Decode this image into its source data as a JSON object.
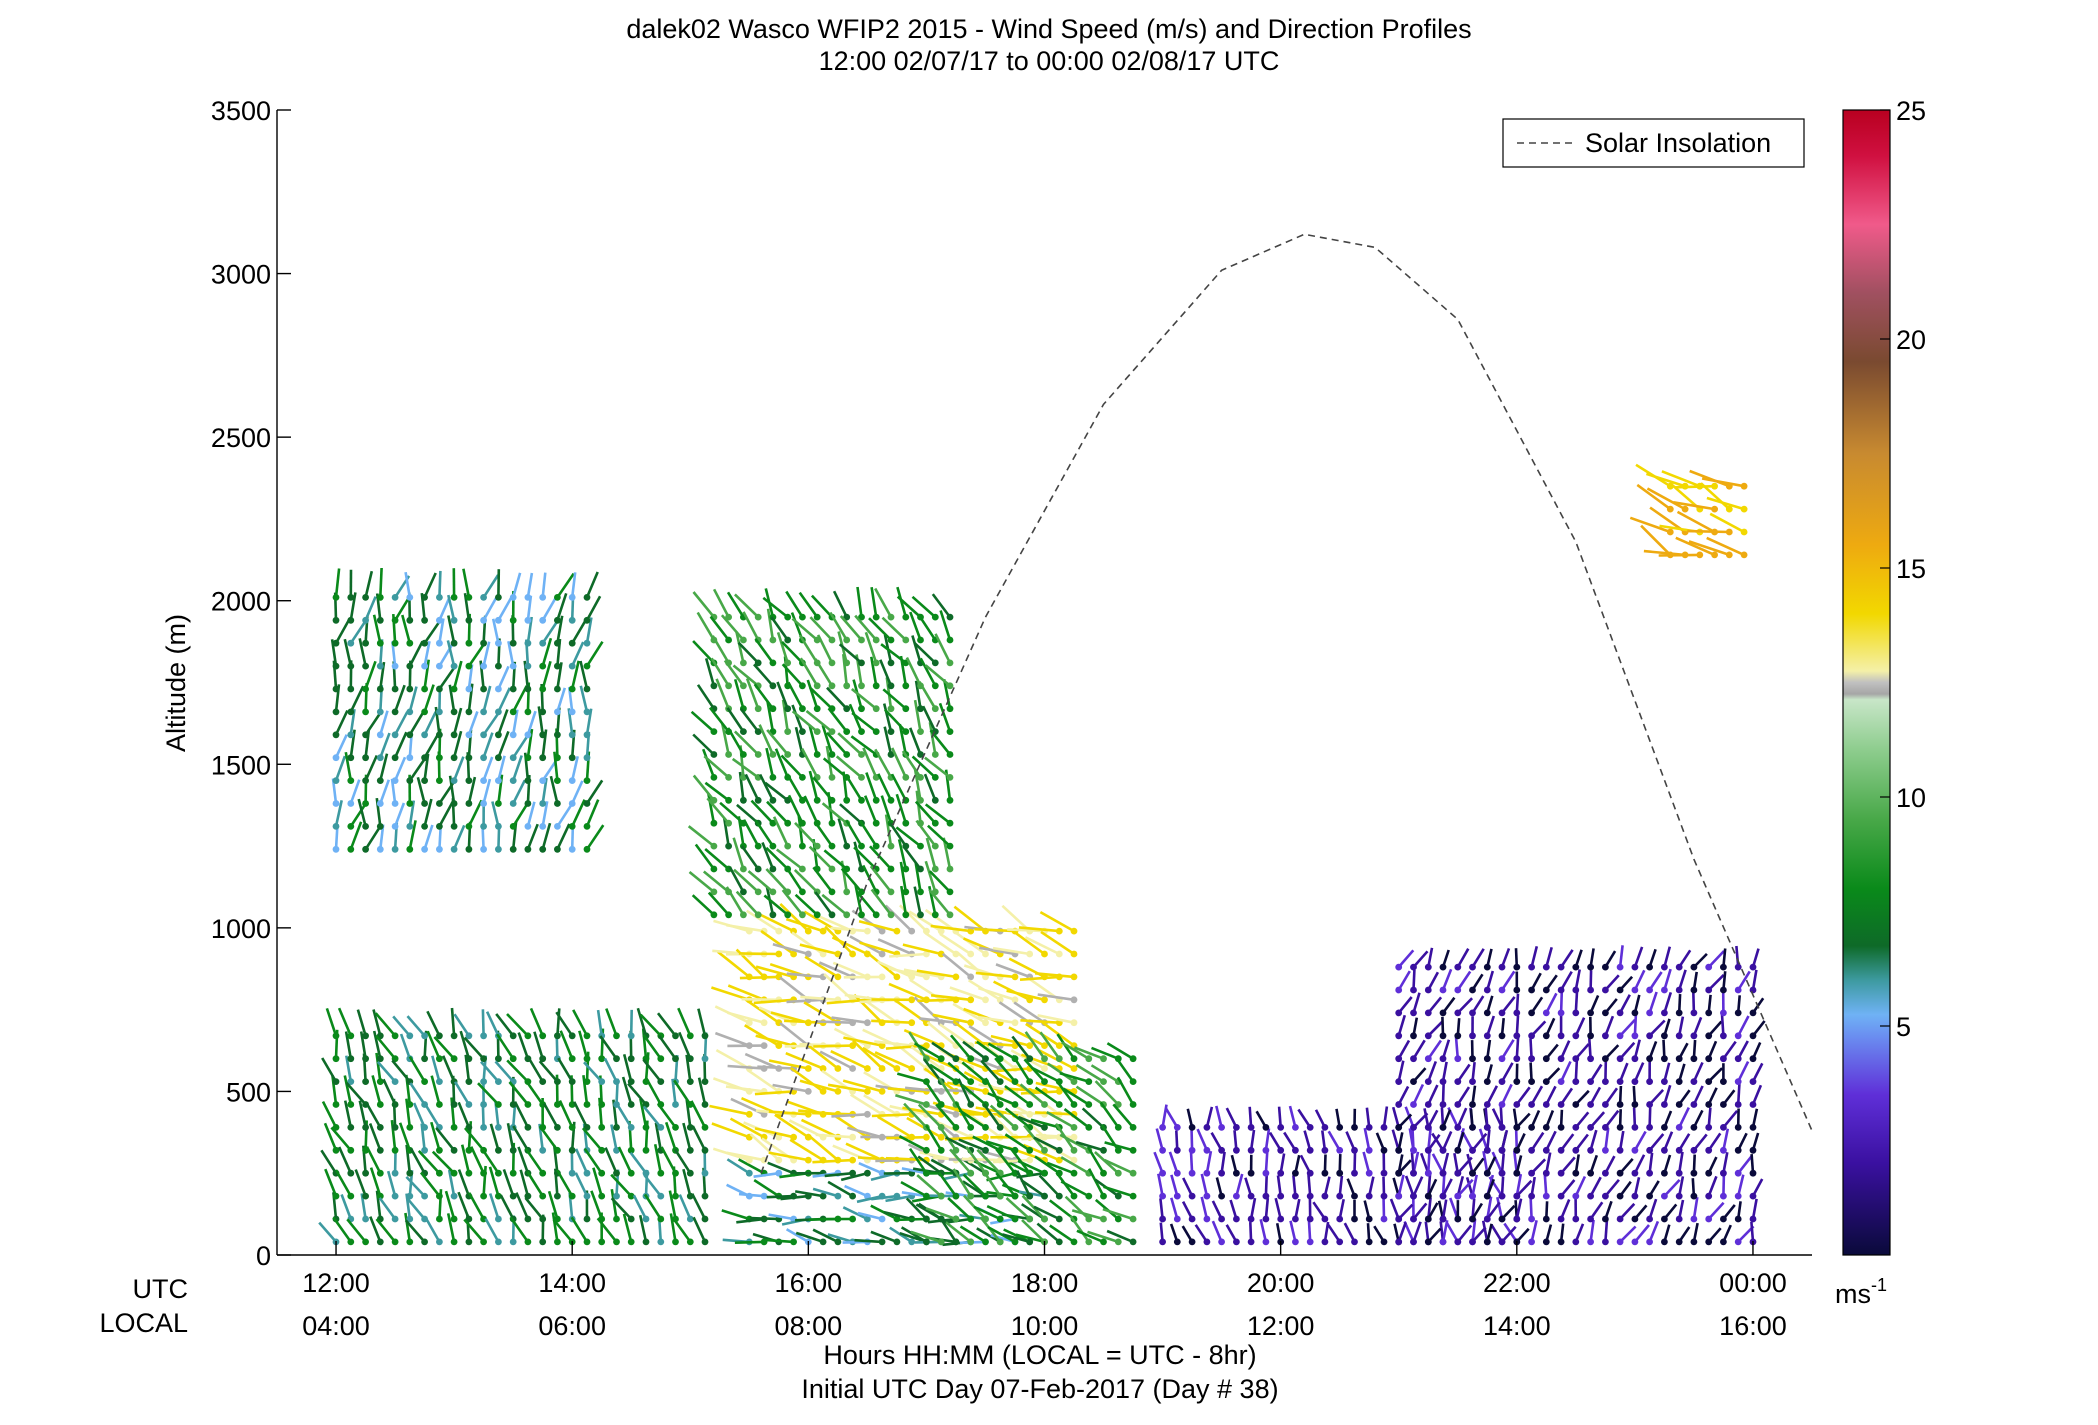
{
  "chart_data": {
    "type": "scatter",
    "title": "dalek02 Wasco WFIP2 2015 - Wind Speed (m/s) and Direction Profiles",
    "subtitle": "12:00 02/07/17 to 00:00 02/08/17  UTC",
    "ylabel": "Altitude (m)",
    "xlabel": "Hours HH:MM  (LOCAL = UTC - 8hr)",
    "xlabel2": "Initial UTC Day 07-Feb-2017 (Day # 38)",
    "row_label_utc": "UTC",
    "row_label_local": "LOCAL",
    "x_ticks_utc": [
      "12:00",
      "14:00",
      "16:00",
      "18:00",
      "20:00",
      "22:00",
      "00:00"
    ],
    "x_ticks_local": [
      "04:00",
      "06:00",
      "08:00",
      "10:00",
      "12:00",
      "14:00",
      "16:00"
    ],
    "xlim": [
      11.5,
      24.5
    ],
    "y_ticks": [
      0,
      500,
      1000,
      1500,
      2000,
      2500,
      3000,
      3500
    ],
    "ylim": [
      0,
      3500
    ],
    "colorbar": {
      "ticks": [
        5,
        10,
        15,
        20,
        25
      ],
      "range": [
        0,
        25
      ],
      "unit_label": "ms",
      "unit_exponent": "-1"
    },
    "legend": {
      "entry": "Solar Insolation",
      "placement": "top-right",
      "style": "dashed"
    },
    "solar_insolation": {
      "x_hours": [
        15.6,
        16.5,
        17.5,
        18.5,
        19.5,
        20.2,
        20.8,
        21.5,
        22.5,
        23.5,
        24.5
      ],
      "altitude_m": [
        250,
        1140,
        1950,
        2600,
        3010,
        3120,
        3080,
        2860,
        2180,
        1210,
        380
      ]
    },
    "wind_barbs": {
      "note": "profiles of wind speed (color) and direction (stick) vs time and altitude",
      "regions": [
        {
          "t0": 12.0,
          "t1": 15.2,
          "z0": 0,
          "z1": 700,
          "speed": 7.5,
          "dir": 200
        },
        {
          "t0": 12.0,
          "t1": 14.2,
          "z0": 1200,
          "z1": 2050,
          "speed": 7,
          "dir": 170
        },
        {
          "t0": 15.5,
          "t1": 18.0,
          "z0": 0,
          "z1": 250,
          "speed": 7,
          "dir": 260
        },
        {
          "t0": 15.5,
          "t1": 18.3,
          "z0": 250,
          "z1": 1000,
          "speed": 14,
          "dir": 250
        },
        {
          "t0": 15.2,
          "t1": 17.2,
          "z0": 1000,
          "z1": 2000,
          "speed": 9,
          "dir": 210
        },
        {
          "t0": 17.0,
          "t1": 18.8,
          "z0": 0,
          "z1": 600,
          "speed": 9,
          "dir": 230
        },
        {
          "t0": 19.0,
          "t1": 22.0,
          "z0": 0,
          "z1": 400,
          "speed": 3,
          "dir": 190
        },
        {
          "t0": 21.0,
          "t1": 24.0,
          "z0": 0,
          "z1": 900,
          "speed": 2.5,
          "dir": 160
        },
        {
          "t0": 23.3,
          "t1": 24.0,
          "z0": 2100,
          "z1": 2400,
          "speed": 15.5,
          "dir": 250
        }
      ]
    }
  }
}
